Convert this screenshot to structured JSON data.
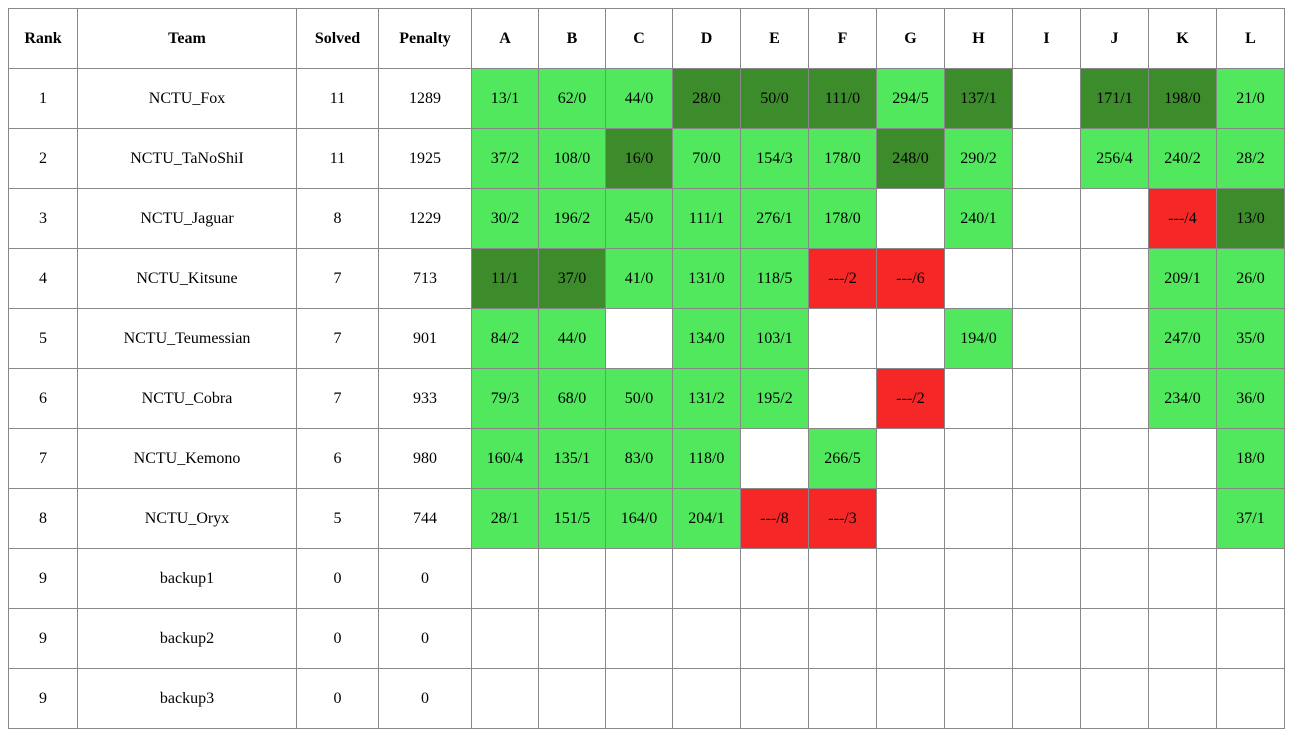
{
  "colors": {
    "solved": "#52e85e",
    "first_solve": "#3c8c2c",
    "failed": "#f62727",
    "unattempted": "#ffffff",
    "border": "#888888"
  },
  "header": {
    "rank": "Rank",
    "team": "Team",
    "solved": "Solved",
    "penalty": "Penalty",
    "problems": [
      "A",
      "B",
      "C",
      "D",
      "E",
      "F",
      "G",
      "H",
      "I",
      "J",
      "K",
      "L"
    ]
  },
  "rows": [
    {
      "rank": "1",
      "team": "NCTU_Fox",
      "solved": "11",
      "penalty": "1289",
      "cells": [
        {
          "text": "13/1",
          "status": "solved"
        },
        {
          "text": "62/0",
          "status": "solved"
        },
        {
          "text": "44/0",
          "status": "solved"
        },
        {
          "text": "28/0",
          "status": "first"
        },
        {
          "text": "50/0",
          "status": "first"
        },
        {
          "text": "111/0",
          "status": "first"
        },
        {
          "text": "294/5",
          "status": "solved"
        },
        {
          "text": "137/1",
          "status": "first"
        },
        {
          "text": "",
          "status": "none"
        },
        {
          "text": "171/1",
          "status": "first"
        },
        {
          "text": "198/0",
          "status": "first"
        },
        {
          "text": "21/0",
          "status": "solved"
        }
      ]
    },
    {
      "rank": "2",
      "team": "NCTU_TaNoShiI",
      "solved": "11",
      "penalty": "1925",
      "cells": [
        {
          "text": "37/2",
          "status": "solved"
        },
        {
          "text": "108/0",
          "status": "solved"
        },
        {
          "text": "16/0",
          "status": "first"
        },
        {
          "text": "70/0",
          "status": "solved"
        },
        {
          "text": "154/3",
          "status": "solved"
        },
        {
          "text": "178/0",
          "status": "solved"
        },
        {
          "text": "248/0",
          "status": "first"
        },
        {
          "text": "290/2",
          "status": "solved"
        },
        {
          "text": "",
          "status": "none"
        },
        {
          "text": "256/4",
          "status": "solved"
        },
        {
          "text": "240/2",
          "status": "solved"
        },
        {
          "text": "28/2",
          "status": "solved"
        }
      ]
    },
    {
      "rank": "3",
      "team": "NCTU_Jaguar",
      "solved": "8",
      "penalty": "1229",
      "cells": [
        {
          "text": "30/2",
          "status": "solved"
        },
        {
          "text": "196/2",
          "status": "solved"
        },
        {
          "text": "45/0",
          "status": "solved"
        },
        {
          "text": "111/1",
          "status": "solved"
        },
        {
          "text": "276/1",
          "status": "solved"
        },
        {
          "text": "178/0",
          "status": "solved"
        },
        {
          "text": "",
          "status": "none"
        },
        {
          "text": "240/1",
          "status": "solved"
        },
        {
          "text": "",
          "status": "none"
        },
        {
          "text": "",
          "status": "none"
        },
        {
          "text": "---/4",
          "status": "failed"
        },
        {
          "text": "13/0",
          "status": "first"
        }
      ]
    },
    {
      "rank": "4",
      "team": "NCTU_Kitsune",
      "solved": "7",
      "penalty": "713",
      "cells": [
        {
          "text": "11/1",
          "status": "first"
        },
        {
          "text": "37/0",
          "status": "first"
        },
        {
          "text": "41/0",
          "status": "solved"
        },
        {
          "text": "131/0",
          "status": "solved"
        },
        {
          "text": "118/5",
          "status": "solved"
        },
        {
          "text": "---/2",
          "status": "failed"
        },
        {
          "text": "---/6",
          "status": "failed"
        },
        {
          "text": "",
          "status": "none"
        },
        {
          "text": "",
          "status": "none"
        },
        {
          "text": "",
          "status": "none"
        },
        {
          "text": "209/1",
          "status": "solved"
        },
        {
          "text": "26/0",
          "status": "solved"
        }
      ]
    },
    {
      "rank": "5",
      "team": "NCTU_Teumessian",
      "solved": "7",
      "penalty": "901",
      "cells": [
        {
          "text": "84/2",
          "status": "solved"
        },
        {
          "text": "44/0",
          "status": "solved"
        },
        {
          "text": "",
          "status": "none"
        },
        {
          "text": "134/0",
          "status": "solved"
        },
        {
          "text": "103/1",
          "status": "solved"
        },
        {
          "text": "",
          "status": "none"
        },
        {
          "text": "",
          "status": "none"
        },
        {
          "text": "194/0",
          "status": "solved"
        },
        {
          "text": "",
          "status": "none"
        },
        {
          "text": "",
          "status": "none"
        },
        {
          "text": "247/0",
          "status": "solved"
        },
        {
          "text": "35/0",
          "status": "solved"
        }
      ]
    },
    {
      "rank": "6",
      "team": "NCTU_Cobra",
      "solved": "7",
      "penalty": "933",
      "cells": [
        {
          "text": "79/3",
          "status": "solved"
        },
        {
          "text": "68/0",
          "status": "solved"
        },
        {
          "text": "50/0",
          "status": "solved"
        },
        {
          "text": "131/2",
          "status": "solved"
        },
        {
          "text": "195/2",
          "status": "solved"
        },
        {
          "text": "",
          "status": "none"
        },
        {
          "text": "---/2",
          "status": "failed"
        },
        {
          "text": "",
          "status": "none"
        },
        {
          "text": "",
          "status": "none"
        },
        {
          "text": "",
          "status": "none"
        },
        {
          "text": "234/0",
          "status": "solved"
        },
        {
          "text": "36/0",
          "status": "solved"
        }
      ]
    },
    {
      "rank": "7",
      "team": "NCTU_Kemono",
      "solved": "6",
      "penalty": "980",
      "cells": [
        {
          "text": "160/4",
          "status": "solved"
        },
        {
          "text": "135/1",
          "status": "solved"
        },
        {
          "text": "83/0",
          "status": "solved"
        },
        {
          "text": "118/0",
          "status": "solved"
        },
        {
          "text": "",
          "status": "none"
        },
        {
          "text": "266/5",
          "status": "solved"
        },
        {
          "text": "",
          "status": "none"
        },
        {
          "text": "",
          "status": "none"
        },
        {
          "text": "",
          "status": "none"
        },
        {
          "text": "",
          "status": "none"
        },
        {
          "text": "",
          "status": "none"
        },
        {
          "text": "18/0",
          "status": "solved"
        }
      ]
    },
    {
      "rank": "8",
      "team": "NCTU_Oryx",
      "solved": "5",
      "penalty": "744",
      "cells": [
        {
          "text": "28/1",
          "status": "solved"
        },
        {
          "text": "151/5",
          "status": "solved"
        },
        {
          "text": "164/0",
          "status": "solved"
        },
        {
          "text": "204/1",
          "status": "solved"
        },
        {
          "text": "---/8",
          "status": "failed"
        },
        {
          "text": "---/3",
          "status": "failed"
        },
        {
          "text": "",
          "status": "none"
        },
        {
          "text": "",
          "status": "none"
        },
        {
          "text": "",
          "status": "none"
        },
        {
          "text": "",
          "status": "none"
        },
        {
          "text": "",
          "status": "none"
        },
        {
          "text": "37/1",
          "status": "solved"
        }
      ]
    },
    {
      "rank": "9",
      "team": "backup1",
      "solved": "0",
      "penalty": "0",
      "cells": [
        {
          "text": "",
          "status": "none"
        },
        {
          "text": "",
          "status": "none"
        },
        {
          "text": "",
          "status": "none"
        },
        {
          "text": "",
          "status": "none"
        },
        {
          "text": "",
          "status": "none"
        },
        {
          "text": "",
          "status": "none"
        },
        {
          "text": "",
          "status": "none"
        },
        {
          "text": "",
          "status": "none"
        },
        {
          "text": "",
          "status": "none"
        },
        {
          "text": "",
          "status": "none"
        },
        {
          "text": "",
          "status": "none"
        },
        {
          "text": "",
          "status": "none"
        }
      ]
    },
    {
      "rank": "9",
      "team": "backup2",
      "solved": "0",
      "penalty": "0",
      "cells": [
        {
          "text": "",
          "status": "none"
        },
        {
          "text": "",
          "status": "none"
        },
        {
          "text": "",
          "status": "none"
        },
        {
          "text": "",
          "status": "none"
        },
        {
          "text": "",
          "status": "none"
        },
        {
          "text": "",
          "status": "none"
        },
        {
          "text": "",
          "status": "none"
        },
        {
          "text": "",
          "status": "none"
        },
        {
          "text": "",
          "status": "none"
        },
        {
          "text": "",
          "status": "none"
        },
        {
          "text": "",
          "status": "none"
        },
        {
          "text": "",
          "status": "none"
        }
      ]
    },
    {
      "rank": "9",
      "team": "backup3",
      "solved": "0",
      "penalty": "0",
      "cells": [
        {
          "text": "",
          "status": "none"
        },
        {
          "text": "",
          "status": "none"
        },
        {
          "text": "",
          "status": "none"
        },
        {
          "text": "",
          "status": "none"
        },
        {
          "text": "",
          "status": "none"
        },
        {
          "text": "",
          "status": "none"
        },
        {
          "text": "",
          "status": "none"
        },
        {
          "text": "",
          "status": "none"
        },
        {
          "text": "",
          "status": "none"
        },
        {
          "text": "",
          "status": "none"
        },
        {
          "text": "",
          "status": "none"
        },
        {
          "text": "",
          "status": "none"
        }
      ]
    }
  ]
}
